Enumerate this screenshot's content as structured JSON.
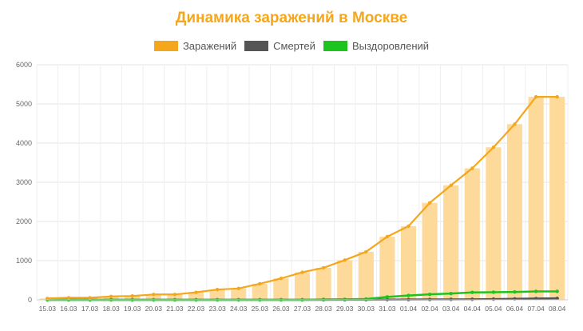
{
  "chart_data": {
    "type": "bar",
    "title": "Динамика заражений в Москве",
    "categories": [
      "15.03",
      "16.03",
      "17.03",
      "18.03",
      "19.03",
      "20.03",
      "21.03",
      "22.03",
      "23.03",
      "24.03",
      "25.03",
      "26.03",
      "27.03",
      "28.03",
      "29.03",
      "30.03",
      "31.03",
      "01.04",
      "02.04",
      "03.04",
      "04.04",
      "05.04",
      "06.04",
      "07.04",
      "08.04"
    ],
    "ylim": [
      0,
      6000
    ],
    "yticks": [
      0,
      1000,
      2000,
      3000,
      4000,
      5000,
      6000
    ],
    "grid": true,
    "legend_position": "top-center",
    "series": [
      {
        "name": "Заражений",
        "color": "#f4a71d",
        "bar_color": "#fdd99a",
        "values": [
          35,
          53,
          53,
          86,
          98,
          137,
          137,
          191,
          262,
          290,
          410,
          546,
          703,
          817,
          1014,
          1226,
          1613,
          1880,
          2475,
          2923,
          3357,
          3893,
          4484,
          5181,
          5181
        ]
      },
      {
        "name": "Смертей",
        "color": "#555555",
        "values": [
          0,
          0,
          0,
          0,
          0,
          0,
          0,
          0,
          0,
          0,
          0,
          0,
          1,
          1,
          2,
          3,
          5,
          7,
          9,
          11,
          14,
          18,
          25,
          32,
          38
        ]
      },
      {
        "name": "Выздоровлений",
        "color": "#1dc41d",
        "values": [
          0,
          0,
          0,
          0,
          0,
          0,
          0,
          0,
          0,
          0,
          0,
          0,
          0,
          10,
          12,
          20,
          75,
          110,
          140,
          160,
          190,
          195,
          200,
          215,
          215
        ]
      }
    ]
  }
}
